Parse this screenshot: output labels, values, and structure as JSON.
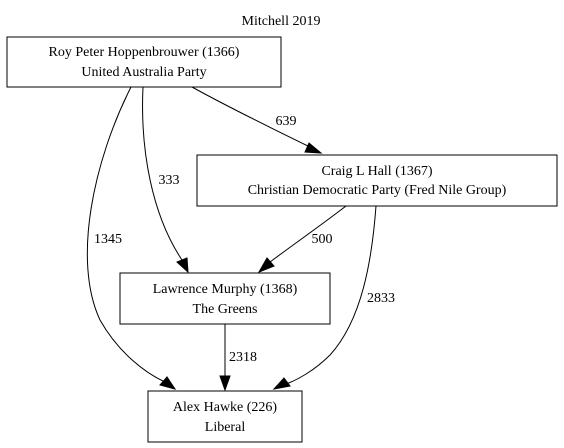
{
  "title": "Mitchell 2019",
  "nodes": {
    "hoppenbrouwer": {
      "line1": "Roy Peter Hoppenbrouwer (1366)",
      "line2": "United Australia Party"
    },
    "hall": {
      "line1": "Craig L Hall (1367)",
      "line2": "Christian Democratic Party (Fred Nile Group)"
    },
    "murphy": {
      "line1": "Lawrence Murphy (1368)",
      "line2": "The Greens"
    },
    "hawke": {
      "line1": "Alex Hawke (226)",
      "line2": "Liberal"
    }
  },
  "edges": {
    "hoppenbrouwer_to_hall": "639",
    "hoppenbrouwer_to_murphy": "333",
    "hoppenbrouwer_to_hawke": "1345",
    "hall_to_murphy": "500",
    "hall_to_hawke": "2833",
    "murphy_to_hawke": "2318"
  }
}
